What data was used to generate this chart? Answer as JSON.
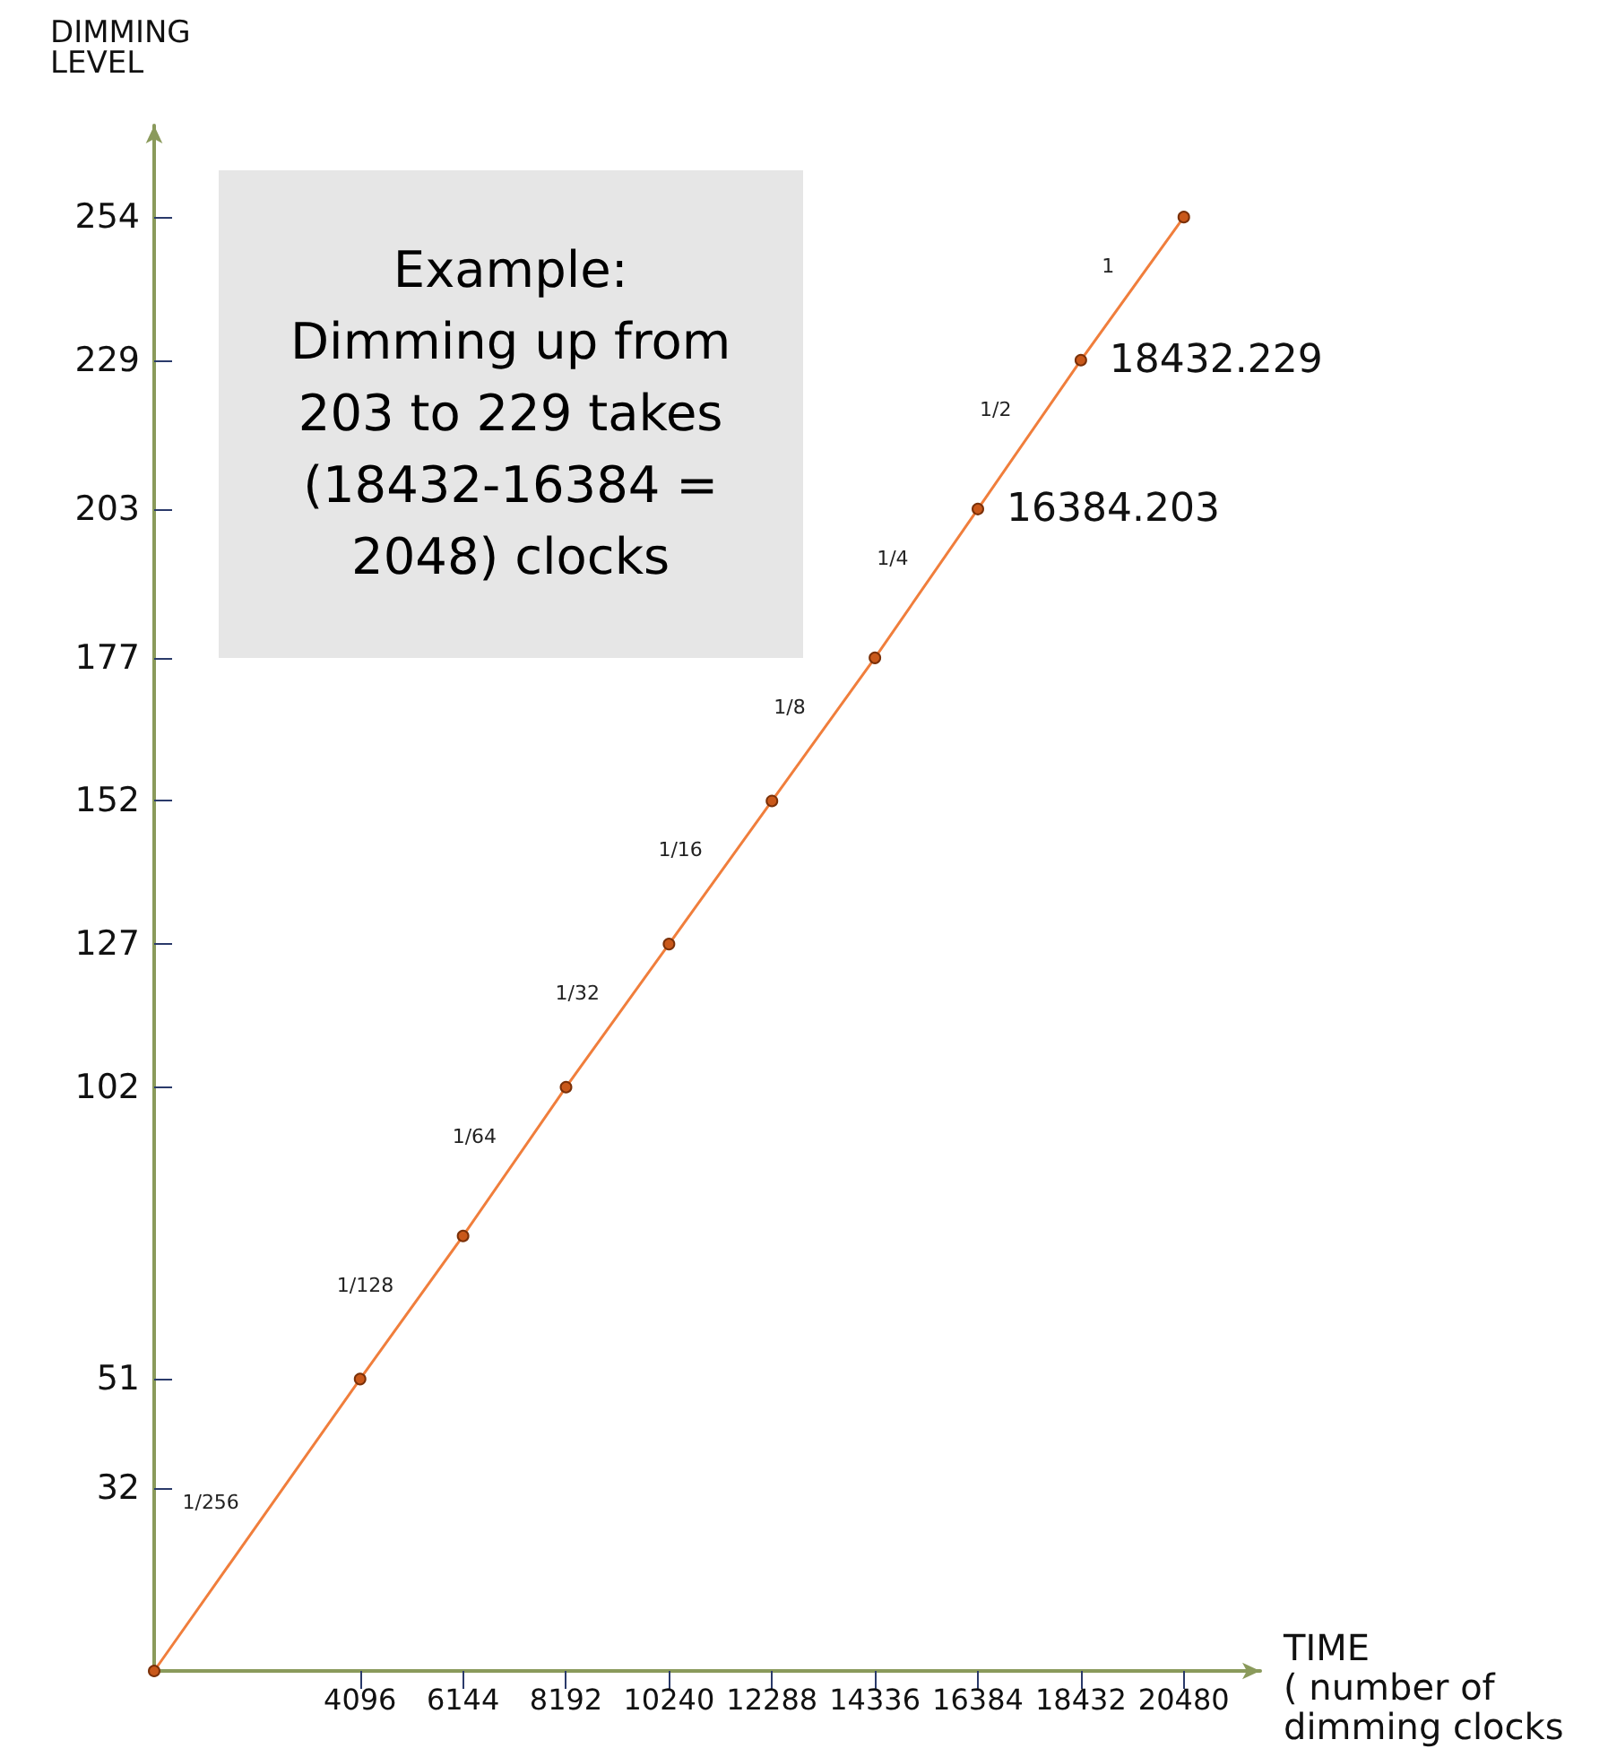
{
  "chart_data": {
    "type": "line",
    "ylabel": "DIMMING\nLEVEL",
    "xlabel": "TIME\n( number of\ndimming clocks",
    "x": [
      0,
      4096,
      6144,
      8192,
      10240,
      12288,
      14336,
      16384,
      18432,
      20480
    ],
    "series": [
      {
        "color": "#f07e3c",
        "values": [
          0,
          51,
          76,
          102,
          127,
          152,
          177,
          203,
          229,
          254
        ]
      }
    ],
    "xlim": [
      0,
      22000
    ],
    "xticks": [
      4096,
      6144,
      8192,
      10240,
      12288,
      14336,
      16384,
      18432,
      20480
    ],
    "ylim": [
      0,
      270
    ],
    "yticks": [
      32,
      51,
      102,
      127,
      152,
      177,
      203,
      229,
      254
    ],
    "marker": "circle",
    "line_style": "solid",
    "grid": false,
    "annotations": [
      "Example:\nDimming up from\n203 to 229 takes\n(18432-16384 =\n2048) clocks",
      {
        "text": "16384.203",
        "x": 16384,
        "y": 203
      },
      {
        "text": "18432.229",
        "x": 18432,
        "y": 229
      },
      {
        "text": "1/256",
        "x": 2048,
        "y": 25
      },
      {
        "text": "1/128",
        "x": 5120,
        "y": 63
      },
      {
        "text": "1/64",
        "x": 7168,
        "y": 89
      },
      {
        "text": "1/32",
        "x": 9216,
        "y": 114
      },
      {
        "text": "1/16",
        "x": 11264,
        "y": 139
      },
      {
        "text": "1/8",
        "x": 13312,
        "y": 164
      },
      {
        "text": "1/4",
        "x": 15360,
        "y": 190
      },
      {
        "text": "1/2",
        "x": 17408,
        "y": 216
      },
      {
        "text": "1",
        "x": 19456,
        "y": 241
      }
    ]
  }
}
